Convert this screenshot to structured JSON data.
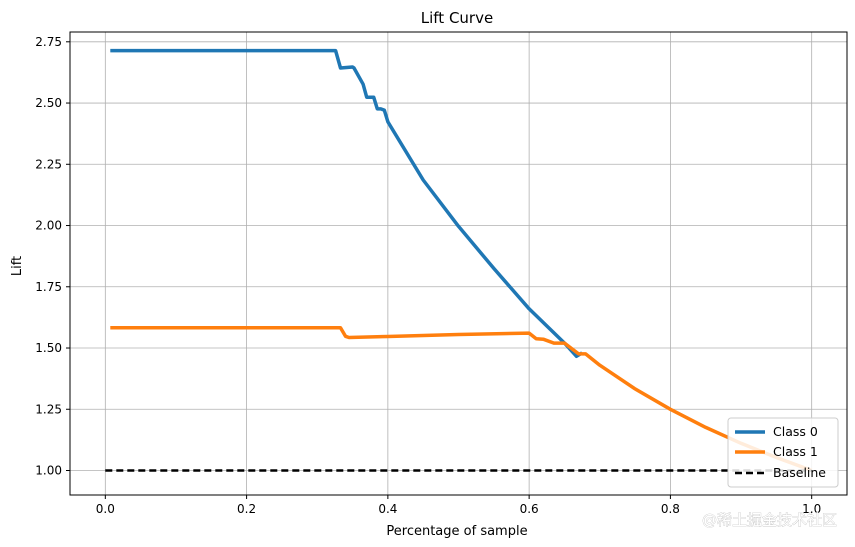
{
  "chart_data": {
    "type": "line",
    "title": "Lift Curve",
    "xlabel": "Percentage of sample",
    "ylabel": "Lift",
    "xlim": [
      -0.05,
      1.05
    ],
    "ylim": [
      0.9,
      2.79
    ],
    "xticks": [
      0.0,
      0.2,
      0.4,
      0.6,
      0.8,
      1.0
    ],
    "xtick_labels": [
      "0.0",
      "0.2",
      "0.4",
      "0.6",
      "0.8",
      "1.0"
    ],
    "yticks": [
      1.0,
      1.25,
      1.5,
      1.75,
      2.0,
      2.25,
      2.5,
      2.75
    ],
    "ytick_labels": [
      "1.00",
      "1.25",
      "1.50",
      "1.75",
      "2.00",
      "2.25",
      "2.50",
      "2.75"
    ],
    "grid": true,
    "legend_position": "bottom-right",
    "series": [
      {
        "name": "Class 0",
        "color": "#1f77b4",
        "x": [
          0.007,
          0.326,
          0.333,
          0.35,
          0.352,
          0.365,
          0.37,
          0.38,
          0.385,
          0.39,
          0.395,
          0.4,
          0.45,
          0.5,
          0.55,
          0.6,
          0.65,
          0.667,
          0.675
        ],
        "values": [
          2.714,
          2.714,
          2.643,
          2.647,
          2.643,
          2.577,
          2.524,
          2.524,
          2.476,
          2.476,
          2.471,
          2.423,
          2.186,
          1.997,
          1.825,
          1.66,
          1.52,
          1.466,
          1.48
        ]
      },
      {
        "name": "Class 1",
        "color": "#ff7f0e",
        "x": [
          0.007,
          0.333,
          0.34,
          0.345,
          0.4,
          0.5,
          0.6,
          0.61,
          0.62,
          0.635,
          0.64,
          0.65,
          0.67,
          0.68,
          0.7,
          0.75,
          0.8,
          0.85,
          0.9,
          0.95,
          1.0
        ],
        "values": [
          1.583,
          1.583,
          1.548,
          1.543,
          1.547,
          1.555,
          1.561,
          1.538,
          1.536,
          1.52,
          1.52,
          1.52,
          1.476,
          1.476,
          1.43,
          1.333,
          1.25,
          1.176,
          1.111,
          1.053,
          1.0
        ]
      },
      {
        "name": "Baseline",
        "color": "#000000",
        "dashed": true,
        "x": [
          0.0,
          1.0
        ],
        "values": [
          1.0,
          1.0
        ]
      }
    ]
  },
  "watermark": "@稀土掘金技术社区"
}
